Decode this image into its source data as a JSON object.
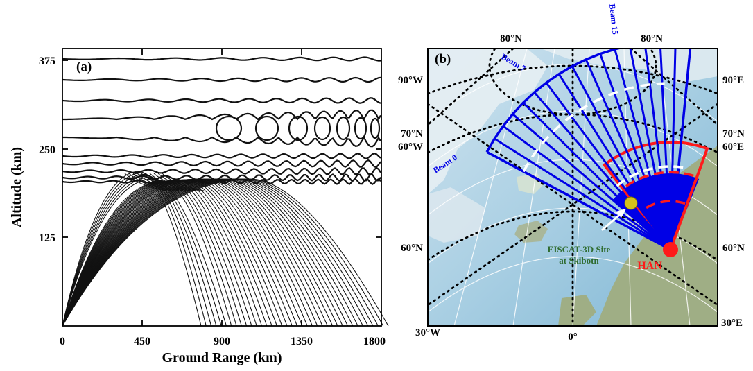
{
  "panel_a": {
    "tag": "(a)",
    "xlabel": "Ground Range (km)",
    "ylabel": "Altitude (km)",
    "xticks": [
      "0",
      "450",
      "900",
      "1350",
      "1800"
    ],
    "yticks": [
      "125",
      "250",
      "375"
    ],
    "xlim": [
      0,
      1800
    ],
    "ylim": [
      0,
      400
    ]
  },
  "panel_b": {
    "tag": "(b)",
    "lat_labels": [
      "80°N",
      "80°N",
      "70°N",
      "70°N",
      "60°N",
      "60°N"
    ],
    "lon_labels": [
      "90°W",
      "90°E",
      "60°W",
      "60°E",
      "30°W",
      "0°",
      "30°E"
    ],
    "beam_labels": [
      "Beam 0",
      "Beam 7",
      "Beam 15"
    ],
    "site_label_line1": "EISCAT-3D Site",
    "site_label_line2": "at Skibotn",
    "radar_label": "HAN",
    "colors": {
      "beams": "#0000e6",
      "han": "#ff1a1a",
      "site": "#d6c21a",
      "site_text": "#2e6b2e"
    }
  }
}
